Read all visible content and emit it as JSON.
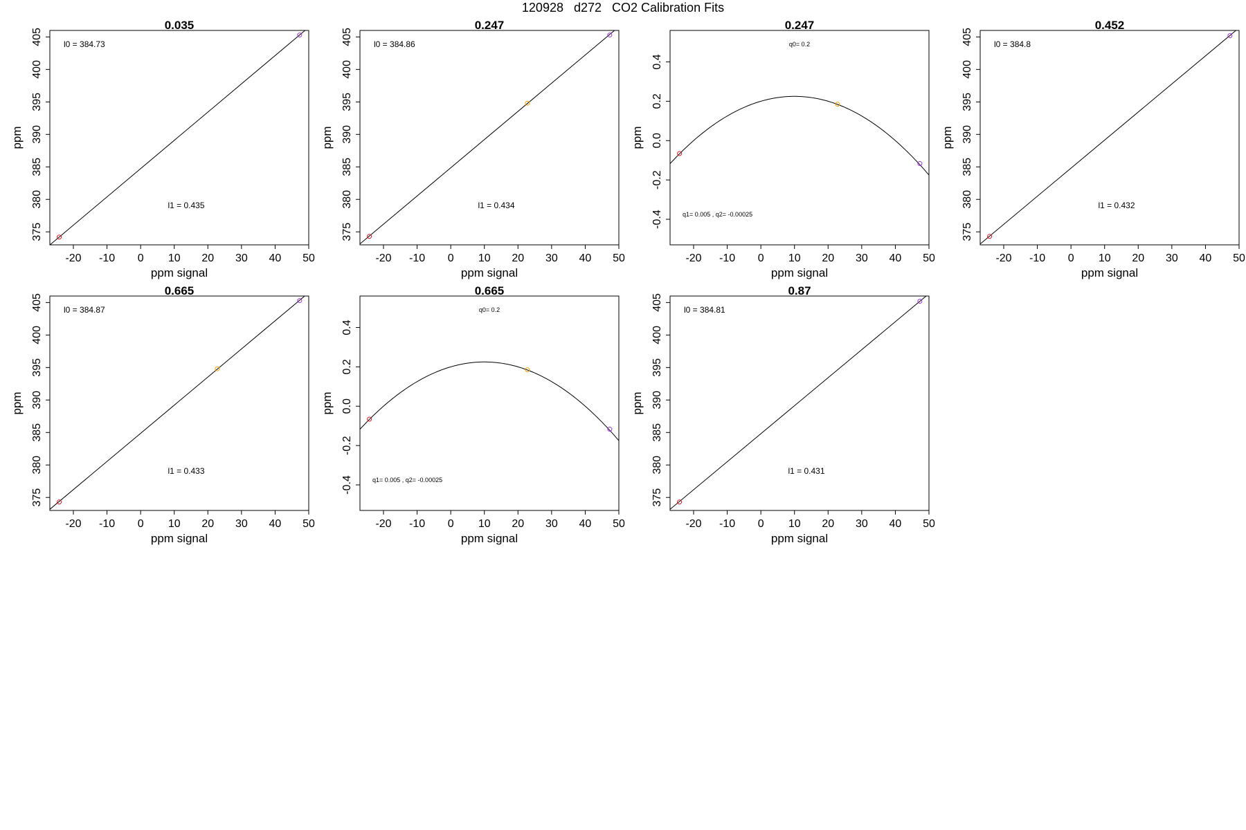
{
  "figure": {
    "title": "120928   d272   CO2 Calibration Fits"
  },
  "chart_data": [
    {
      "type": "scatter",
      "fit": "linear",
      "title": "0.035",
      "xlabel": "ppm signal",
      "ylabel": "ppm",
      "xlim": [
        -27,
        50
      ],
      "ylim": [
        373,
        406
      ],
      "xticks": [
        -20,
        -10,
        0,
        10,
        20,
        30,
        40,
        50
      ],
      "yticks": [
        375,
        380,
        385,
        390,
        395,
        400,
        405
      ],
      "points": [
        {
          "x": -24.2,
          "y": 374.2,
          "color": "#e8101a"
        },
        {
          "x": 47.3,
          "y": 405.3,
          "color": "#9b30e8"
        }
      ],
      "line": {
        "intercept": 384.73,
        "slope": 0.435
      },
      "annotations": {
        "top": "l0 =  384.73",
        "bottom": "l1 =  0.435"
      }
    },
    {
      "type": "scatter",
      "fit": "linear",
      "title": "0.247",
      "xlabel": "ppm signal",
      "ylabel": "ppm",
      "xlim": [
        -27,
        50
      ],
      "ylim": [
        373,
        406
      ],
      "xticks": [
        -20,
        -10,
        0,
        10,
        20,
        30,
        40,
        50
      ],
      "yticks": [
        375,
        380,
        385,
        390,
        395,
        400,
        405
      ],
      "points": [
        {
          "x": -24.2,
          "y": 374.3,
          "color": "#e8101a"
        },
        {
          "x": 22.8,
          "y": 394.8,
          "color": "#f5a300"
        },
        {
          "x": 47.3,
          "y": 405.3,
          "color": "#9b30e8"
        }
      ],
      "line": {
        "intercept": 384.86,
        "slope": 0.434
      },
      "annotations": {
        "top": "l0 =  384.86",
        "bottom": "l1 =  0.434"
      }
    },
    {
      "type": "scatter",
      "fit": "quadratic",
      "title": "0.247",
      "xlabel": "ppm signal",
      "ylabel": "ppm",
      "xlim": [
        -27,
        50
      ],
      "ylim": [
        -0.53,
        0.56
      ],
      "xticks": [
        -20,
        -10,
        0,
        10,
        20,
        30,
        40,
        50
      ],
      "yticks": [
        -0.4,
        -0.2,
        0.0,
        0.2,
        0.4
      ],
      "ytick_labels": [
        "-0.4",
        "-0.2",
        "0.0",
        "0.2",
        "0.4"
      ],
      "points": [
        {
          "x": -24.2,
          "y": -0.066,
          "color": "#e8101a"
        },
        {
          "x": 22.8,
          "y": 0.185,
          "color": "#f5a300"
        },
        {
          "x": 47.3,
          "y": -0.117,
          "color": "#9b30e8"
        }
      ],
      "curve": {
        "q0": 0.2,
        "q1": 0.005,
        "q2": -0.00025
      },
      "annotations": {
        "top": "q0= 0.2",
        "bottom": "q1= 0.005 , q2= -0.00025"
      }
    },
    {
      "type": "scatter",
      "fit": "linear",
      "title": "0.452",
      "xlabel": "ppm signal",
      "ylabel": "ppm",
      "xlim": [
        -27,
        50
      ],
      "ylim": [
        373,
        406
      ],
      "xticks": [
        -20,
        -10,
        0,
        10,
        20,
        30,
        40,
        50
      ],
      "yticks": [
        375,
        380,
        385,
        390,
        395,
        400,
        405
      ],
      "points": [
        {
          "x": -24.2,
          "y": 374.3,
          "color": "#e8101a"
        },
        {
          "x": 47.3,
          "y": 405.2,
          "color": "#9b30e8"
        }
      ],
      "line": {
        "intercept": 384.8,
        "slope": 0.432
      },
      "annotations": {
        "top": "l0 =  384.8",
        "bottom": "l1 =  0.432"
      }
    },
    {
      "type": "scatter",
      "fit": "linear",
      "title": "0.665",
      "xlabel": "ppm signal",
      "ylabel": "ppm",
      "xlim": [
        -27,
        50
      ],
      "ylim": [
        373,
        406
      ],
      "xticks": [
        -20,
        -10,
        0,
        10,
        20,
        30,
        40,
        50
      ],
      "yticks": [
        375,
        380,
        385,
        390,
        395,
        400,
        405
      ],
      "points": [
        {
          "x": -24.2,
          "y": 374.3,
          "color": "#e8101a"
        },
        {
          "x": 22.8,
          "y": 394.8,
          "color": "#f5a300"
        },
        {
          "x": 47.3,
          "y": 405.3,
          "color": "#9b30e8"
        }
      ],
      "line": {
        "intercept": 384.87,
        "slope": 0.433
      },
      "annotations": {
        "top": "l0 =  384.87",
        "bottom": "l1 =  0.433"
      }
    },
    {
      "type": "scatter",
      "fit": "quadratic",
      "title": "0.665",
      "xlabel": "ppm signal",
      "ylabel": "ppm",
      "xlim": [
        -27,
        50
      ],
      "ylim": [
        -0.53,
        0.56
      ],
      "xticks": [
        -20,
        -10,
        0,
        10,
        20,
        30,
        40,
        50
      ],
      "yticks": [
        -0.4,
        -0.2,
        0.0,
        0.2,
        0.4
      ],
      "ytick_labels": [
        "-0.4",
        "-0.2",
        "0.0",
        "0.2",
        "0.4"
      ],
      "points": [
        {
          "x": -24.2,
          "y": -0.066,
          "color": "#e8101a"
        },
        {
          "x": 22.8,
          "y": 0.185,
          "color": "#f5a300"
        },
        {
          "x": 47.3,
          "y": -0.117,
          "color": "#9b30e8"
        }
      ],
      "curve": {
        "q0": 0.2,
        "q1": 0.005,
        "q2": -0.00025
      },
      "annotations": {
        "top": "q0= 0.2",
        "bottom": "q1= 0.005 , q2= -0.00025"
      }
    },
    {
      "type": "scatter",
      "fit": "linear",
      "title": "0.87",
      "xlabel": "ppm signal",
      "ylabel": "ppm",
      "xlim": [
        -27,
        50
      ],
      "ylim": [
        373,
        406
      ],
      "xticks": [
        -20,
        -10,
        0,
        10,
        20,
        30,
        40,
        50
      ],
      "yticks": [
        375,
        380,
        385,
        390,
        395,
        400,
        405
      ],
      "points": [
        {
          "x": -24.2,
          "y": 374.3,
          "color": "#e8101a"
        },
        {
          "x": 47.3,
          "y": 405.2,
          "color": "#9b30e8"
        }
      ],
      "line": {
        "intercept": 384.81,
        "slope": 0.431
      },
      "annotations": {
        "top": "l0 =  384.81",
        "bottom": "l1 =  0.431"
      }
    }
  ]
}
